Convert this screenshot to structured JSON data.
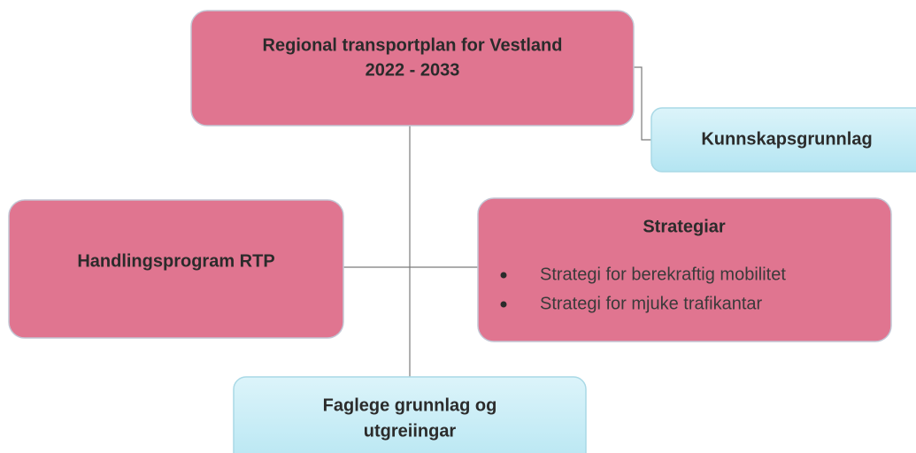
{
  "nodes": [
    {
      "lines": [
        "Regional transportplan for Vestland",
        "2022 - 2033"
      ]
    },
    {
      "lines": [
        "Kunnskapsgrunnlag"
      ]
    },
    {
      "lines": [
        "Handlingsprogram RTP"
      ]
    },
    {
      "lines": [
        "Strategiar"
      ],
      "items": [
        "Strategi for berekraftig mobilitet",
        "Strategi for mjuke trafikantar"
      ]
    },
    {
      "lines": [
        "Faglege grunnlag og",
        "utgreiingar"
      ]
    }
  ]
}
